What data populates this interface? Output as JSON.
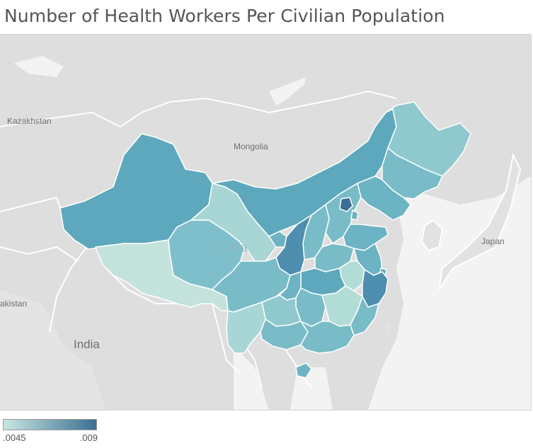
{
  "title": "Number of Health Workers Per Civilian Population",
  "legend": {
    "min_label": ".0045",
    "max_label": ".009",
    "min_value": 0.0045,
    "max_value": 0.009,
    "color_low": "#c7e6df",
    "color_high": "#3b6f94"
  },
  "map_labels": {
    "kazakhstan": "Kazakhstan",
    "mongolia": "Mongolia",
    "china": "China",
    "japan": "Japan",
    "india": "India",
    "pakistan": "akistan"
  },
  "colors": {
    "land": "#dcdcdc",
    "water": "#f2f2f2",
    "borders": "#ffffff",
    "title": "#555555"
  }
}
